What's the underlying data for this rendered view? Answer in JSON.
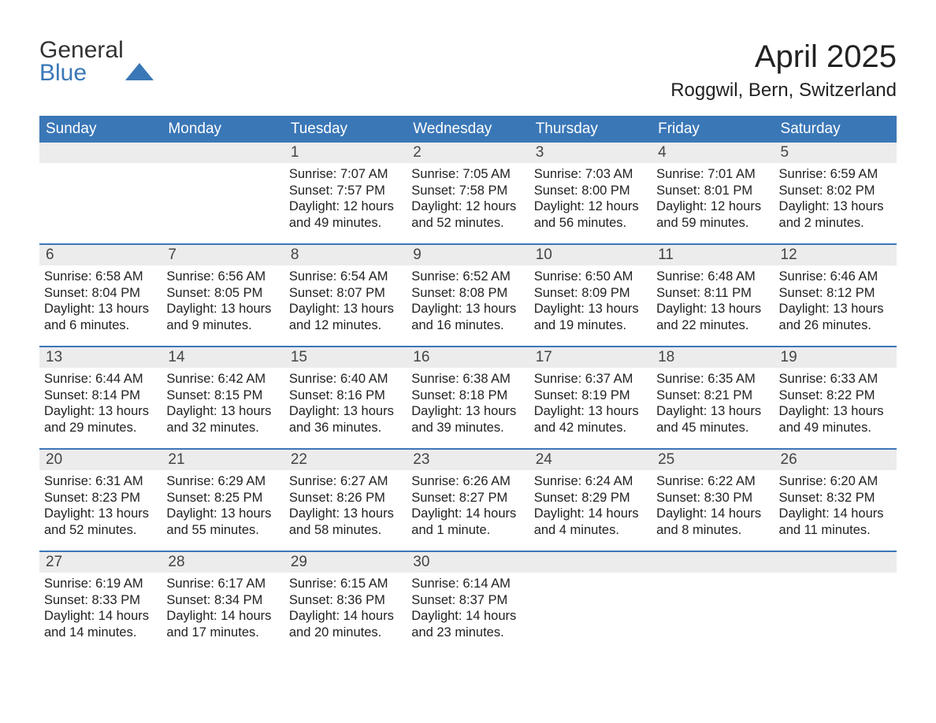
{
  "logo": {
    "line1": "General",
    "line2": "Blue"
  },
  "title": "April 2025",
  "location": "Roggwil, Bern, Switzerland",
  "colors": {
    "header_bg": "#3a77b7",
    "header_text": "#ffffff",
    "daynum_bg": "#ececec",
    "body_text": "#222222",
    "page_bg": "#ffffff"
  },
  "fonts": {
    "title_size": 40,
    "location_size": 24,
    "dayheader_size": 19,
    "body_size": 16.5
  },
  "day_headers": [
    "Sunday",
    "Monday",
    "Tuesday",
    "Wednesday",
    "Thursday",
    "Friday",
    "Saturday"
  ],
  "weeks": [
    [
      {
        "num": "",
        "lines": []
      },
      {
        "num": "",
        "lines": []
      },
      {
        "num": "1",
        "lines": [
          "Sunrise: 7:07 AM",
          "Sunset: 7:57 PM",
          "Daylight: 12 hours and 49 minutes."
        ]
      },
      {
        "num": "2",
        "lines": [
          "Sunrise: 7:05 AM",
          "Sunset: 7:58 PM",
          "Daylight: 12 hours and 52 minutes."
        ]
      },
      {
        "num": "3",
        "lines": [
          "Sunrise: 7:03 AM",
          "Sunset: 8:00 PM",
          "Daylight: 12 hours and 56 minutes."
        ]
      },
      {
        "num": "4",
        "lines": [
          "Sunrise: 7:01 AM",
          "Sunset: 8:01 PM",
          "Daylight: 12 hours and 59 minutes."
        ]
      },
      {
        "num": "5",
        "lines": [
          "Sunrise: 6:59 AM",
          "Sunset: 8:02 PM",
          "Daylight: 13 hours and 2 minutes."
        ]
      }
    ],
    [
      {
        "num": "6",
        "lines": [
          "Sunrise: 6:58 AM",
          "Sunset: 8:04 PM",
          "Daylight: 13 hours and 6 minutes."
        ]
      },
      {
        "num": "7",
        "lines": [
          "Sunrise: 6:56 AM",
          "Sunset: 8:05 PM",
          "Daylight: 13 hours and 9 minutes."
        ]
      },
      {
        "num": "8",
        "lines": [
          "Sunrise: 6:54 AM",
          "Sunset: 8:07 PM",
          "Daylight: 13 hours and 12 minutes."
        ]
      },
      {
        "num": "9",
        "lines": [
          "Sunrise: 6:52 AM",
          "Sunset: 8:08 PM",
          "Daylight: 13 hours and 16 minutes."
        ]
      },
      {
        "num": "10",
        "lines": [
          "Sunrise: 6:50 AM",
          "Sunset: 8:09 PM",
          "Daylight: 13 hours and 19 minutes."
        ]
      },
      {
        "num": "11",
        "lines": [
          "Sunrise: 6:48 AM",
          "Sunset: 8:11 PM",
          "Daylight: 13 hours and 22 minutes."
        ]
      },
      {
        "num": "12",
        "lines": [
          "Sunrise: 6:46 AM",
          "Sunset: 8:12 PM",
          "Daylight: 13 hours and 26 minutes."
        ]
      }
    ],
    [
      {
        "num": "13",
        "lines": [
          "Sunrise: 6:44 AM",
          "Sunset: 8:14 PM",
          "Daylight: 13 hours and 29 minutes."
        ]
      },
      {
        "num": "14",
        "lines": [
          "Sunrise: 6:42 AM",
          "Sunset: 8:15 PM",
          "Daylight: 13 hours and 32 minutes."
        ]
      },
      {
        "num": "15",
        "lines": [
          "Sunrise: 6:40 AM",
          "Sunset: 8:16 PM",
          "Daylight: 13 hours and 36 minutes."
        ]
      },
      {
        "num": "16",
        "lines": [
          "Sunrise: 6:38 AM",
          "Sunset: 8:18 PM",
          "Daylight: 13 hours and 39 minutes."
        ]
      },
      {
        "num": "17",
        "lines": [
          "Sunrise: 6:37 AM",
          "Sunset: 8:19 PM",
          "Daylight: 13 hours and 42 minutes."
        ]
      },
      {
        "num": "18",
        "lines": [
          "Sunrise: 6:35 AM",
          "Sunset: 8:21 PM",
          "Daylight: 13 hours and 45 minutes."
        ]
      },
      {
        "num": "19",
        "lines": [
          "Sunrise: 6:33 AM",
          "Sunset: 8:22 PM",
          "Daylight: 13 hours and 49 minutes."
        ]
      }
    ],
    [
      {
        "num": "20",
        "lines": [
          "Sunrise: 6:31 AM",
          "Sunset: 8:23 PM",
          "Daylight: 13 hours and 52 minutes."
        ]
      },
      {
        "num": "21",
        "lines": [
          "Sunrise: 6:29 AM",
          "Sunset: 8:25 PM",
          "Daylight: 13 hours and 55 minutes."
        ]
      },
      {
        "num": "22",
        "lines": [
          "Sunrise: 6:27 AM",
          "Sunset: 8:26 PM",
          "Daylight: 13 hours and 58 minutes."
        ]
      },
      {
        "num": "23",
        "lines": [
          "Sunrise: 6:26 AM",
          "Sunset: 8:27 PM",
          "Daylight: 14 hours and 1 minute."
        ]
      },
      {
        "num": "24",
        "lines": [
          "Sunrise: 6:24 AM",
          "Sunset: 8:29 PM",
          "Daylight: 14 hours and 4 minutes."
        ]
      },
      {
        "num": "25",
        "lines": [
          "Sunrise: 6:22 AM",
          "Sunset: 8:30 PM",
          "Daylight: 14 hours and 8 minutes."
        ]
      },
      {
        "num": "26",
        "lines": [
          "Sunrise: 6:20 AM",
          "Sunset: 8:32 PM",
          "Daylight: 14 hours and 11 minutes."
        ]
      }
    ],
    [
      {
        "num": "27",
        "lines": [
          "Sunrise: 6:19 AM",
          "Sunset: 8:33 PM",
          "Daylight: 14 hours and 14 minutes."
        ]
      },
      {
        "num": "28",
        "lines": [
          "Sunrise: 6:17 AM",
          "Sunset: 8:34 PM",
          "Daylight: 14 hours and 17 minutes."
        ]
      },
      {
        "num": "29",
        "lines": [
          "Sunrise: 6:15 AM",
          "Sunset: 8:36 PM",
          "Daylight: 14 hours and 20 minutes."
        ]
      },
      {
        "num": "30",
        "lines": [
          "Sunrise: 6:14 AM",
          "Sunset: 8:37 PM",
          "Daylight: 14 hours and 23 minutes."
        ]
      },
      {
        "num": "",
        "lines": []
      },
      {
        "num": "",
        "lines": []
      },
      {
        "num": "",
        "lines": []
      }
    ]
  ]
}
